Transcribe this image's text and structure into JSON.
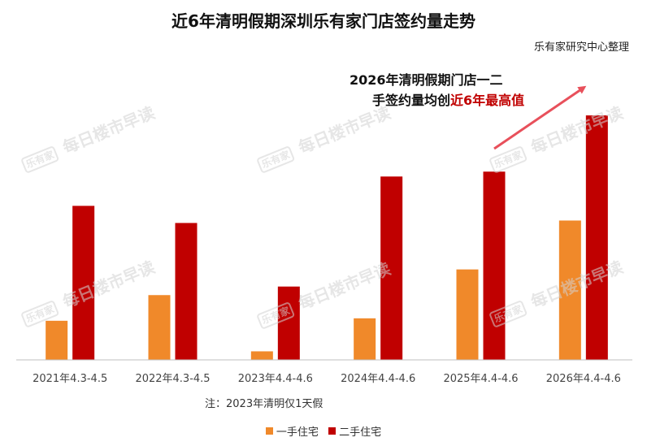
{
  "chart_data": {
    "type": "bar",
    "title": "近6年清明假期深圳乐有家门店签约量走势",
    "source": "乐有家研究中心整理",
    "categories": [
      "2021年4.3-4.5",
      "2022年4.3-4.5",
      "2023年4.4-4.6",
      "2024年4.4-4.6",
      "2025年4.4-4.6",
      "2026年4.4-4.6"
    ],
    "series": [
      {
        "name": "一手住宅",
        "color": "#f0892a",
        "values": [
          16,
          26.5,
          3.5,
          17,
          37,
          57
        ]
      },
      {
        "name": "二手住宅",
        "color": "#c00000",
        "values": [
          63,
          56,
          30,
          75,
          77,
          100
        ]
      }
    ],
    "ylim": [
      0,
      105
    ],
    "grid": false,
    "legend_position": "bottom",
    "annotation": {
      "line1": "2026年清明假期门店一二",
      "line2_prefix": "手签约量均创",
      "line2_highlight": "近6年最高值",
      "arrow_color": "#e8505b"
    },
    "note": "注：2023年清明仅1天假",
    "watermark": {
      "logo": "乐有家",
      "text": "每日楼市早读"
    }
  }
}
